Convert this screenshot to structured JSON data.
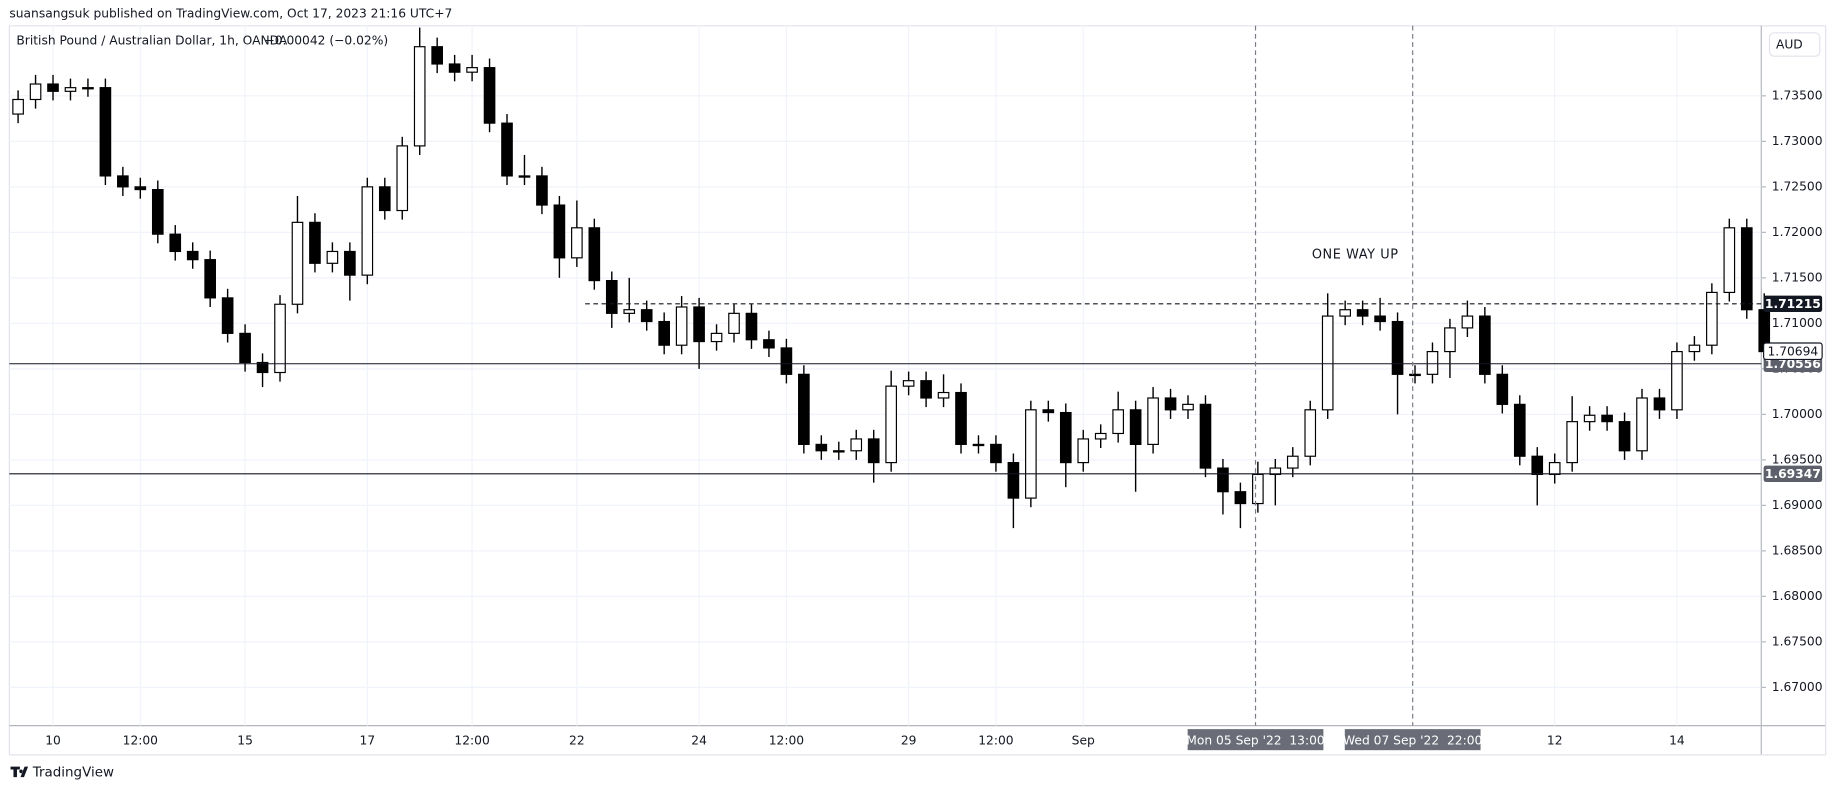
{
  "header": {
    "publisher": "suansangsuk published on TradingView.com, Oct 17, 2023 21:16 UTC+7"
  },
  "footer": {
    "brand": "TradingView"
  },
  "chart_data": {
    "type": "candlestick",
    "title": "British Pound / Australian Dollar, 1h, OANDA",
    "change": "−0.00042 (−0.02%)",
    "currency": "AUD",
    "annotation": "ONE WAY UP",
    "crosshair_labels": [
      "Mon 05 Sep '22  13:00",
      "Wed 07 Sep '22  22:00"
    ],
    "categories": [
      null,
      null,
      "10",
      null,
      null,
      null,
      null,
      "12:00",
      null,
      null,
      null,
      null,
      null,
      "15",
      null,
      null,
      null,
      null,
      null,
      null,
      "17",
      null,
      null,
      null,
      null,
      null,
      "12:00",
      null,
      null,
      null,
      null,
      null,
      "22",
      null,
      null,
      null,
      null,
      null,
      null,
      "24",
      null,
      null,
      null,
      null,
      "12:00",
      null,
      null,
      null,
      null,
      null,
      null,
      "29",
      null,
      null,
      null,
      null,
      "12:00",
      null,
      null,
      null,
      null,
      "Sep",
      null,
      null,
      null,
      null,
      null,
      null,
      null,
      null,
      null,
      null,
      null,
      null,
      null,
      null,
      null,
      null,
      null,
      null,
      null,
      null,
      null,
      null,
      null,
      null,
      null,
      null,
      "12",
      null,
      null,
      null,
      null,
      null,
      null,
      "14",
      null,
      null,
      null,
      null,
      null
    ],
    "open": [
      1.733,
      1.7346,
      1.7363,
      1.7355,
      1.7359,
      1.7359,
      1.7262,
      1.725,
      1.7247,
      1.7198,
      1.7179,
      1.717,
      1.7128,
      1.7089,
      1.7057,
      1.7046,
      1.7121,
      1.7211,
      1.7166,
      1.7179,
      1.7153,
      1.725,
      1.7224,
      1.7295,
      1.7404,
      1.7385,
      1.7376,
      1.7381,
      1.732,
      1.7262,
      1.7262,
      1.723,
      1.7172,
      1.7205,
      1.7147,
      1.7111,
      1.7115,
      1.7102,
      1.7076,
      1.7118,
      1.708,
      1.7089,
      1.7111,
      1.7082,
      1.7073,
      1.7044,
      1.6967,
      1.696,
      1.696,
      1.6973,
      1.6947,
      1.7031,
      1.7037,
      1.7018,
      1.7024,
      1.6967,
      1.6967,
      1.6947,
      1.6908,
      1.7005,
      1.7002,
      1.6947,
      1.6973,
      1.6979,
      1.7005,
      1.6967,
      1.7018,
      1.7005,
      1.7011,
      1.6941,
      1.6915,
      1.6902,
      1.6934,
      1.6941,
      1.6954,
      1.7005,
      1.7108,
      1.7115,
      1.7108,
      1.7102,
      1.7044,
      1.7044,
      1.7069,
      1.7095,
      1.7108,
      1.7044,
      1.7011,
      1.6954,
      1.6934,
      1.6947,
      1.6992,
      1.6999,
      1.6992,
      1.696,
      1.7018,
      1.7005,
      1.7069,
      1.7076,
      1.7134,
      1.7205,
      1.7115
    ],
    "high": [
      1.7356,
      1.7373,
      1.7373,
      1.7369,
      1.7369,
      1.7369,
      1.7272,
      1.726,
      1.7257,
      1.7208,
      1.7189,
      1.718,
      1.7138,
      1.7099,
      1.7067,
      1.7131,
      1.724,
      1.7221,
      1.7189,
      1.7189,
      1.726,
      1.726,
      1.7305,
      1.7425,
      1.7414,
      1.7395,
      1.7395,
      1.7391,
      1.733,
      1.7285,
      1.7272,
      1.724,
      1.7235,
      1.7215,
      1.7157,
      1.715,
      1.7125,
      1.7112,
      1.713,
      1.7128,
      1.7099,
      1.7121,
      1.7121,
      1.7092,
      1.7083,
      1.7054,
      1.6977,
      1.697,
      1.6983,
      1.6983,
      1.7048,
      1.7047,
      1.7047,
      1.7044,
      1.7034,
      1.6977,
      1.6977,
      1.6957,
      1.7015,
      1.7015,
      1.7012,
      1.6983,
      1.6989,
      1.7025,
      1.7015,
      1.703,
      1.7028,
      1.7021,
      1.7021,
      1.6951,
      1.6925,
      1.6948,
      1.6951,
      1.6964,
      1.7015,
      1.7133,
      1.7125,
      1.7125,
      1.7128,
      1.7112,
      1.7054,
      1.7079,
      1.7105,
      1.7125,
      1.7118,
      1.7054,
      1.7021,
      1.6964,
      1.6957,
      1.702,
      1.7009,
      1.7009,
      1.7002,
      1.7028,
      1.7028,
      1.7079,
      1.7086,
      1.7144,
      1.7215,
      1.7215,
      1.7133
    ],
    "low": [
      1.732,
      1.7336,
      1.7345,
      1.7345,
      1.7349,
      1.7252,
      1.724,
      1.7237,
      1.7188,
      1.7169,
      1.716,
      1.7118,
      1.7079,
      1.7047,
      1.703,
      1.7036,
      1.7111,
      1.7156,
      1.7156,
      1.7125,
      1.7143,
      1.7214,
      1.7214,
      1.7285,
      1.7375,
      1.7366,
      1.7366,
      1.731,
      1.7252,
      1.7252,
      1.722,
      1.715,
      1.7162,
      1.7137,
      1.7095,
      1.7101,
      1.7092,
      1.7066,
      1.7066,
      1.705,
      1.707,
      1.7079,
      1.7072,
      1.7063,
      1.7034,
      1.6957,
      1.695,
      1.695,
      1.695,
      1.6925,
      1.6937,
      1.7021,
      1.7008,
      1.7008,
      1.6957,
      1.6957,
      1.6937,
      1.6875,
      1.6898,
      1.6992,
      1.692,
      1.6937,
      1.6963,
      1.6969,
      1.6915,
      1.6957,
      1.6995,
      1.6995,
      1.6931,
      1.689,
      1.6875,
      1.6892,
      1.69,
      1.6931,
      1.6944,
      1.6995,
      1.7098,
      1.7098,
      1.7092,
      1.7,
      1.7034,
      1.7034,
      1.704,
      1.7085,
      1.7034,
      1.7001,
      1.6944,
      1.69,
      1.6924,
      1.6937,
      1.6982,
      1.6982,
      1.695,
      1.695,
      1.6995,
      1.6995,
      1.7059,
      1.7066,
      1.7124,
      1.7105,
      1.7059
    ],
    "close": [
      1.7346,
      1.7363,
      1.7355,
      1.7359,
      1.7359,
      1.7262,
      1.725,
      1.7247,
      1.7198,
      1.7179,
      1.717,
      1.7128,
      1.7089,
      1.7057,
      1.7046,
      1.7121,
      1.7211,
      1.7166,
      1.7179,
      1.7153,
      1.725,
      1.7224,
      1.7295,
      1.7404,
      1.7385,
      1.7376,
      1.7381,
      1.732,
      1.7262,
      1.7262,
      1.723,
      1.7172,
      1.7205,
      1.7147,
      1.7111,
      1.7115,
      1.7102,
      1.7076,
      1.7118,
      1.708,
      1.7089,
      1.7111,
      1.7082,
      1.7073,
      1.7044,
      1.6967,
      1.696,
      1.696,
      1.6973,
      1.6947,
      1.7031,
      1.7037,
      1.7018,
      1.7024,
      1.6967,
      1.6967,
      1.6947,
      1.6908,
      1.7005,
      1.7002,
      1.6947,
      1.6973,
      1.6979,
      1.7005,
      1.6967,
      1.7018,
      1.7005,
      1.7011,
      1.6941,
      1.6915,
      1.6902,
      1.6934,
      1.6941,
      1.6954,
      1.7005,
      1.7108,
      1.7115,
      1.7108,
      1.7102,
      1.7044,
      1.7044,
      1.7069,
      1.7095,
      1.7108,
      1.7044,
      1.7011,
      1.6954,
      1.6934,
      1.6947,
      1.6992,
      1.6999,
      1.6992,
      1.696,
      1.7018,
      1.7005,
      1.7069,
      1.7076,
      1.7134,
      1.7205,
      1.7115,
      1.7069
    ],
    "ylim": [
      1.6658,
      1.7427
    ],
    "yticks": [
      {
        "value": 1.67,
        "label": "1.67000"
      },
      {
        "value": 1.675,
        "label": "1.67500"
      },
      {
        "value": 1.68,
        "label": "1.68000"
      },
      {
        "value": 1.685,
        "label": "1.68500"
      },
      {
        "value": 1.69,
        "label": "1.69000"
      },
      {
        "value": 1.695,
        "label": "1.69500"
      },
      {
        "value": 1.7,
        "label": "1.70000"
      },
      {
        "value": 1.705,
        "label": "1.70500"
      },
      {
        "value": 1.71,
        "label": "1.71000"
      },
      {
        "value": 1.715,
        "label": "1.71500"
      },
      {
        "value": 1.72,
        "label": "1.72000"
      },
      {
        "value": 1.725,
        "label": "1.72500"
      },
      {
        "value": 1.73,
        "label": "1.73000"
      },
      {
        "value": 1.735,
        "label": "1.73500"
      }
    ],
    "hlines": [
      {
        "value": 1.71215,
        "style": "dashed"
      },
      {
        "value": 1.70556,
        "style": "solid"
      },
      {
        "value": 1.69347,
        "style": "solid"
      }
    ],
    "last_price": 1.70694,
    "grid": true
  }
}
